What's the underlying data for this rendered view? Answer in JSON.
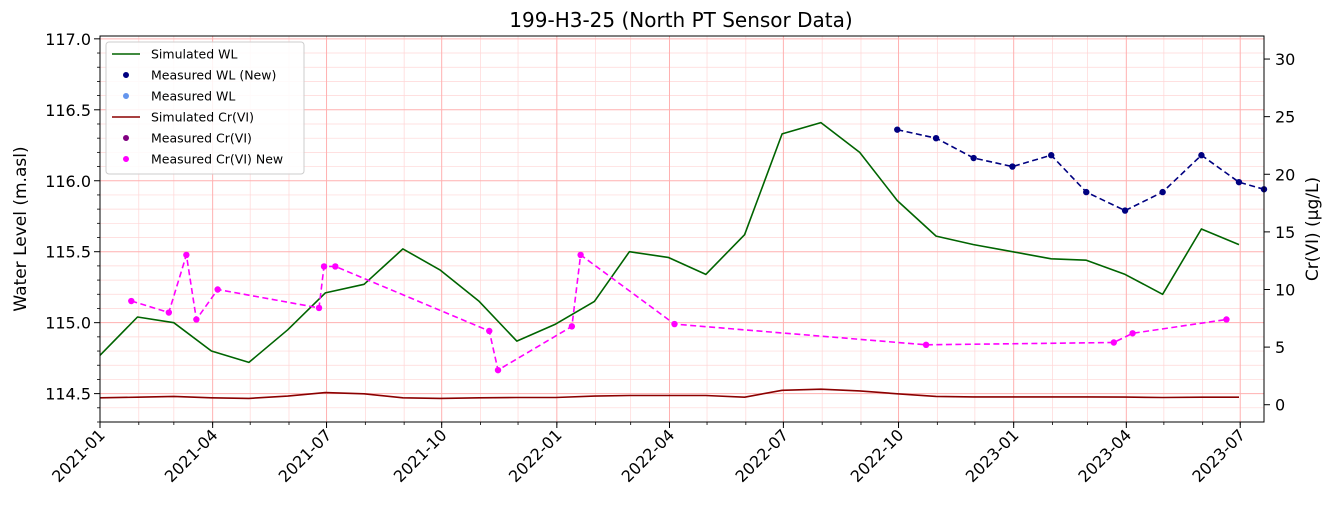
{
  "chart_data": {
    "type": "line",
    "title": "199-H3-25 (North PT Sensor Data)",
    "xlabel": "",
    "ylabel": "Water Level (m.asl)",
    "y2label": "Cr(VI) (µg/L)",
    "xlim": [
      "2021-01-01",
      "2023-07-20"
    ],
    "ylim": [
      114.3,
      117.02
    ],
    "y2lim": [
      -1.5,
      32
    ],
    "x_ticks": [
      "2021-01-01",
      "2021-04-01",
      "2021-07-01",
      "2021-10-01",
      "2022-01-01",
      "2022-04-01",
      "2022-07-01",
      "2022-10-01",
      "2023-01-01",
      "2023-04-01",
      "2023-07-01"
    ],
    "x_tick_labels": [
      "2021-01",
      "2021-04",
      "2021-07",
      "2021-10",
      "2022-01",
      "2022-04",
      "2022-07",
      "2022-10",
      "2023-01",
      "2023-04",
      "2023-07"
    ],
    "y_ticks": [
      114.5,
      115.0,
      115.5,
      116.0,
      116.5,
      117.0
    ],
    "y_tick_labels": [
      "114.5",
      "115.0",
      "115.5",
      "116.0",
      "116.5",
      "117.0"
    ],
    "y2_ticks": [
      0,
      5,
      10,
      15,
      20,
      25,
      30
    ],
    "y2_tick_labels": [
      "0",
      "5",
      "10",
      "15",
      "20",
      "25",
      "30"
    ],
    "grid": true,
    "legend_position": "top-left",
    "series": [
      {
        "name": "Simulated WL",
        "axis": "left",
        "kind": "line",
        "color": "#006400",
        "points": [
          [
            "2021-01-01",
            114.77
          ],
          [
            "2021-01-31",
            115.04
          ],
          [
            "2021-03-01",
            115.0
          ],
          [
            "2021-03-31",
            114.8
          ],
          [
            "2021-04-30",
            114.72
          ],
          [
            "2021-05-31",
            114.95
          ],
          [
            "2021-06-30",
            115.21
          ],
          [
            "2021-07-31",
            115.27
          ],
          [
            "2021-08-31",
            115.52
          ],
          [
            "2021-09-30",
            115.37
          ],
          [
            "2021-10-31",
            115.15
          ],
          [
            "2021-11-30",
            114.87
          ],
          [
            "2021-12-31",
            114.99
          ],
          [
            "2022-01-31",
            115.15
          ],
          [
            "2022-02-28",
            115.5
          ],
          [
            "2022-03-31",
            115.46
          ],
          [
            "2022-04-30",
            115.34
          ],
          [
            "2022-05-31",
            115.62
          ],
          [
            "2022-06-30",
            116.33
          ],
          [
            "2022-07-31",
            116.41
          ],
          [
            "2022-08-31",
            116.2
          ],
          [
            "2022-09-30",
            115.86
          ],
          [
            "2022-10-31",
            115.61
          ],
          [
            "2022-11-30",
            115.55
          ],
          [
            "2022-12-31",
            115.5
          ],
          [
            "2023-01-31",
            115.45
          ],
          [
            "2023-02-28",
            115.44
          ],
          [
            "2023-03-31",
            115.34
          ],
          [
            "2023-04-30",
            115.2
          ],
          [
            "2023-05-31",
            115.66
          ],
          [
            "2023-06-30",
            115.55
          ]
        ]
      },
      {
        "name": "Measured WL (New)",
        "axis": "left",
        "kind": "dashed-markers",
        "color": "#000080",
        "points": [
          [
            "2022-09-30",
            116.36
          ],
          [
            "2022-10-31",
            116.3
          ],
          [
            "2022-11-30",
            116.16
          ],
          [
            "2022-12-31",
            116.1
          ],
          [
            "2023-01-31",
            116.18
          ],
          [
            "2023-02-28",
            115.92
          ],
          [
            "2023-03-31",
            115.79
          ],
          [
            "2023-04-30",
            115.92
          ],
          [
            "2023-05-31",
            116.18
          ],
          [
            "2023-06-30",
            115.99
          ],
          [
            "2023-07-20",
            115.94
          ]
        ]
      },
      {
        "name": "Measured WL",
        "axis": "left",
        "kind": "markers",
        "color": "#6495ED",
        "points": []
      },
      {
        "name": "Simulated Cr(VI)",
        "axis": "right",
        "kind": "line",
        "color": "#8B0000",
        "points": [
          [
            "2021-01-01",
            0.6
          ],
          [
            "2021-01-31",
            0.65
          ],
          [
            "2021-03-01",
            0.72
          ],
          [
            "2021-03-31",
            0.6
          ],
          [
            "2021-04-30",
            0.55
          ],
          [
            "2021-05-31",
            0.75
          ],
          [
            "2021-06-30",
            1.05
          ],
          [
            "2021-07-31",
            0.95
          ],
          [
            "2021-08-31",
            0.6
          ],
          [
            "2021-09-30",
            0.55
          ],
          [
            "2021-10-31",
            0.6
          ],
          [
            "2021-11-30",
            0.63
          ],
          [
            "2021-12-31",
            0.63
          ],
          [
            "2022-01-31",
            0.75
          ],
          [
            "2022-02-28",
            0.8
          ],
          [
            "2022-03-31",
            0.8
          ],
          [
            "2022-04-30",
            0.8
          ],
          [
            "2022-05-31",
            0.65
          ],
          [
            "2022-06-30",
            1.25
          ],
          [
            "2022-07-31",
            1.35
          ],
          [
            "2022-08-31",
            1.2
          ],
          [
            "2022-09-30",
            0.95
          ],
          [
            "2022-10-31",
            0.72
          ],
          [
            "2022-11-30",
            0.68
          ],
          [
            "2022-12-31",
            0.68
          ],
          [
            "2023-01-31",
            0.68
          ],
          [
            "2023-02-28",
            0.68
          ],
          [
            "2023-03-31",
            0.66
          ],
          [
            "2023-04-30",
            0.63
          ],
          [
            "2023-05-31",
            0.65
          ],
          [
            "2023-06-30",
            0.65
          ]
        ]
      },
      {
        "name": "Measured Cr(VI)",
        "axis": "right",
        "kind": "markers",
        "color": "#800080",
        "points": []
      },
      {
        "name": "Measured Cr(VI) New",
        "axis": "right",
        "kind": "dashed-markers",
        "color": "#FF00FF",
        "points": [
          [
            "2021-01-26",
            9.0
          ],
          [
            "2021-02-25",
            8.0
          ],
          [
            "2021-03-11",
            13.0
          ],
          [
            "2021-03-19",
            7.4
          ],
          [
            "2021-04-05",
            10.0
          ],
          [
            "2021-06-25",
            8.4
          ],
          [
            "2021-06-29",
            12.0
          ],
          [
            "2021-07-08",
            12.0
          ],
          [
            "2021-11-08",
            6.4
          ],
          [
            "2021-11-15",
            3.0
          ],
          [
            "2022-01-13",
            6.8
          ],
          [
            "2022-01-20",
            13.0
          ],
          [
            "2022-04-05",
            7.0
          ],
          [
            "2022-10-23",
            5.2
          ],
          [
            "2023-03-22",
            5.4
          ],
          [
            "2023-04-06",
            6.2
          ],
          [
            "2023-06-20",
            7.4
          ]
        ]
      }
    ]
  }
}
